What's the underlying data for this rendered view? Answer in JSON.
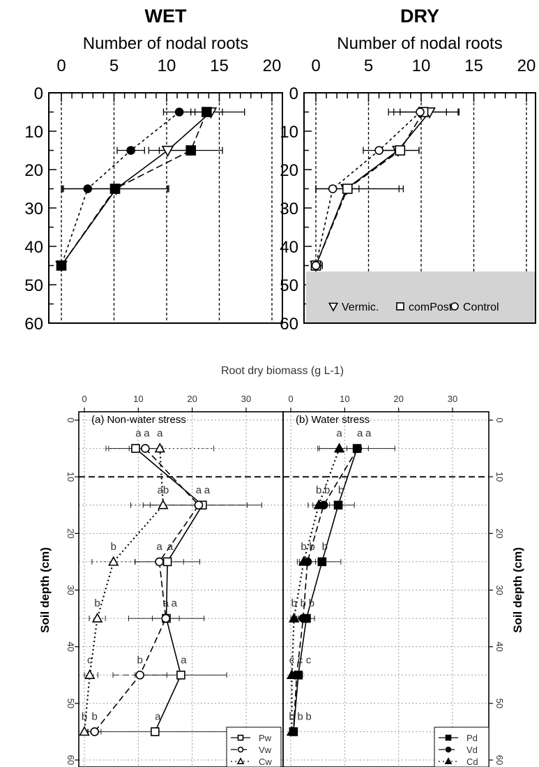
{
  "chart_data": [
    {
      "type": "line",
      "title": "WET",
      "xlabel": "Number of nodal roots",
      "xlim": [
        0,
        20
      ],
      "ylim": [
        0,
        60
      ],
      "x_ticks": [
        "0",
        "5",
        "10",
        "15",
        "20"
      ],
      "y_ticks": [
        "0",
        "10",
        "20",
        "30",
        "40",
        "50",
        "60"
      ],
      "depth": [
        5,
        15,
        25,
        45
      ],
      "series": [
        {
          "marker": "triangle-down-open",
          "values": [
            14.2,
            10.1,
            5.2,
            0.0
          ],
          "err": [
            3.2,
            1.8,
            5.0,
            0.4
          ]
        },
        {
          "marker": "square-filled",
          "values": [
            13.8,
            12.3,
            5.1,
            0.0
          ],
          "err": [
            1.5,
            3.0,
            5.0,
            0.4
          ]
        },
        {
          "marker": "circle-filled",
          "values": [
            11.2,
            6.6,
            2.5,
            0.0
          ],
          "err": [
            1.5,
            1.3,
            2.5,
            0.4
          ]
        }
      ]
    },
    {
      "type": "line",
      "title": "DRY",
      "xlabel": "Number of nodal roots",
      "xlim": [
        0,
        20
      ],
      "ylim": [
        0,
        60
      ],
      "x_ticks": [
        "0",
        "5",
        "10",
        "15",
        "20"
      ],
      "y_ticks": [
        "0",
        "10",
        "20",
        "30",
        "40",
        "50",
        "60"
      ],
      "depth": [
        5,
        15,
        25,
        45
      ],
      "legend_position": "bottom",
      "series": [
        {
          "name": "Vermic.",
          "marker": "triangle-down-open",
          "values": [
            10.8,
            7.8,
            2.9,
            0.0
          ],
          "err": [
            2.8,
            2.0,
            5.0,
            0.6
          ]
        },
        {
          "name": "comPost",
          "marker": "square-open",
          "values": [
            10.2,
            8.0,
            3.0,
            0.0
          ],
          "err": [
            3.3,
            1.8,
            5.3,
            0.6
          ]
        },
        {
          "name": "Control",
          "marker": "circle-open",
          "values": [
            9.9,
            6.0,
            1.6,
            0.0
          ],
          "err": [
            2.5,
            1.5,
            2.5,
            0.6
          ]
        }
      ]
    },
    {
      "type": "line",
      "title": "(a) Non-water stress",
      "xlabel": "Root dry biomass (g L-1)",
      "ylabel": "Soil depth (cm)",
      "xlim": [
        0,
        35
      ],
      "ylim": [
        0,
        60
      ],
      "x_ticks": [
        "0",
        "10",
        "20",
        "30"
      ],
      "y_ticks": [
        "0",
        "10",
        "20",
        "30",
        "40",
        "50",
        "60"
      ],
      "depth": [
        5,
        15,
        25,
        35,
        45,
        55
      ],
      "series": [
        {
          "name": "Pw",
          "marker": "square-open",
          "values": [
            9.5,
            21.9,
            15.4,
            15.2,
            17.9,
            13.1
          ],
          "err": [
            5,
            11,
            6,
            7,
            8.5,
            13.5
          ],
          "labels": [
            "a",
            "a",
            "a",
            "a",
            "a",
            "a"
          ]
        },
        {
          "name": "Vw",
          "marker": "circle-open",
          "values": [
            11.3,
            21.2,
            13.9,
            15.1,
            10.3,
            1.9
          ],
          "err": [
            3,
            9,
            4.5,
            2.5,
            5,
            1.2
          ],
          "labels": [
            "a",
            "a",
            "a",
            "a",
            "b",
            "b"
          ]
        },
        {
          "name": "Cw",
          "marker": "triangle-open",
          "values": [
            14.0,
            14.6,
            5.4,
            2.4,
            1.0,
            0.0
          ],
          "err": [
            10,
            6,
            4,
            1.5,
            1.5,
            0.6
          ],
          "labels": [
            "a",
            "ab",
            "b",
            "b",
            "c",
            "b"
          ]
        }
      ]
    },
    {
      "type": "line",
      "title": "(b) Water stress",
      "xlabel": "Root dry biomass (g L-1)",
      "ylabel": "Soil depth (cm)",
      "xlim": [
        0,
        35
      ],
      "ylim": [
        0,
        60
      ],
      "x_ticks": [
        "0",
        "10",
        "20",
        "30"
      ],
      "y_ticks": [
        "0",
        "10",
        "20",
        "30",
        "40",
        "50",
        "60"
      ],
      "depth": [
        5,
        15,
        25,
        35,
        45,
        55
      ],
      "series": [
        {
          "name": "Pd",
          "marker": "square-filled",
          "values": [
            12.3,
            8.8,
            5.8,
            2.9,
            1.4,
            0.5
          ],
          "err": [
            7,
            3,
            3.5,
            1.5,
            0.8,
            0.4
          ],
          "labels": [
            "a",
            "b",
            "b",
            "b",
            "c",
            "b"
          ]
        },
        {
          "name": "Vd",
          "marker": "circle-filled",
          "values": [
            12.4,
            6.1,
            3.1,
            2.3,
            1.1,
            0.5
          ],
          "err": [
            2,
            2,
            1.5,
            1.2,
            0.7,
            0.4
          ],
          "labels": [
            "a",
            "b",
            "b",
            "b",
            "c",
            "b"
          ]
        },
        {
          "name": "Cd",
          "marker": "triangle-filled",
          "values": [
            9.0,
            5.2,
            2.4,
            0.6,
            0.2,
            0.2
          ],
          "err": [
            4,
            2,
            1.2,
            0.8,
            0.3,
            0.3
          ],
          "labels": [
            "a",
            "b",
            "b",
            "b",
            "c",
            "b"
          ]
        }
      ]
    }
  ]
}
